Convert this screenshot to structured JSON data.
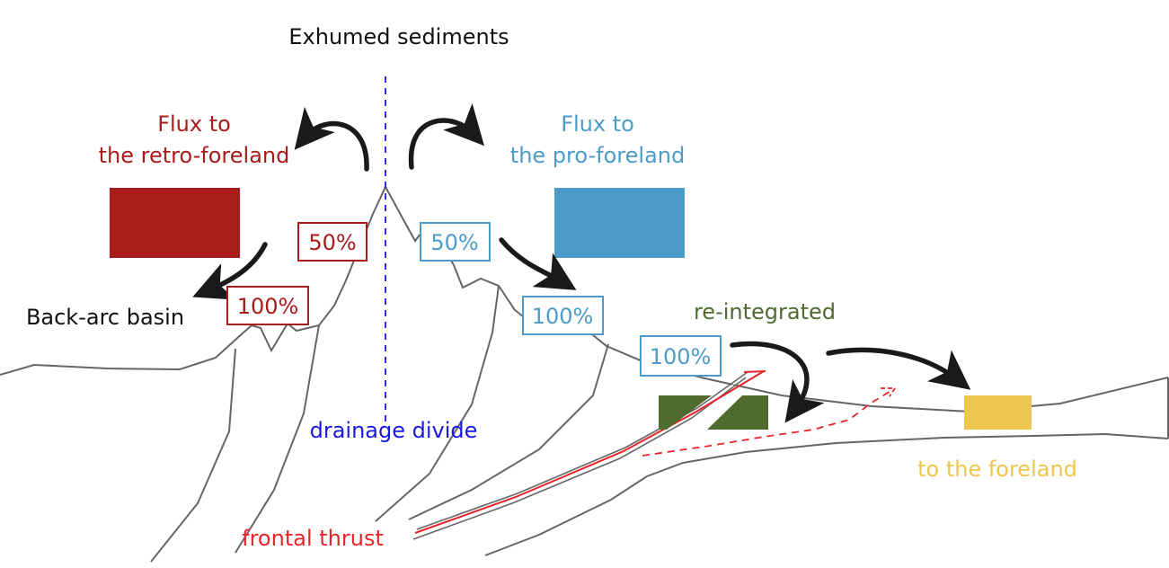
{
  "labels": {
    "title": "Exhumed sediments",
    "retro_flux_line1": "Flux to",
    "retro_flux_line2": "the retro-foreland",
    "pro_flux_line1": "Flux to",
    "pro_flux_line2": "the pro-foreland",
    "back_arc": "Back-arc basin",
    "drainage_divide": "drainage divide",
    "frontal_thrust": "frontal thrust",
    "reintegrated": "re-integrated",
    "to_foreland": "to the foreland"
  },
  "percent_boxes": {
    "retro_upper": "50%",
    "retro_lower": "100%",
    "pro_upper": "50%",
    "pro_middle": "100%",
    "pro_lower": "100%"
  },
  "colors": {
    "retro": "#a81c1b",
    "pro": "#4c9bc9",
    "reintegrated": "#4f6b2f",
    "foreland": "#edc652",
    "divide": "#1a1adf",
    "thrust": "#e8242a",
    "topography": "#666666",
    "arrow": "#1a1a1a"
  }
}
